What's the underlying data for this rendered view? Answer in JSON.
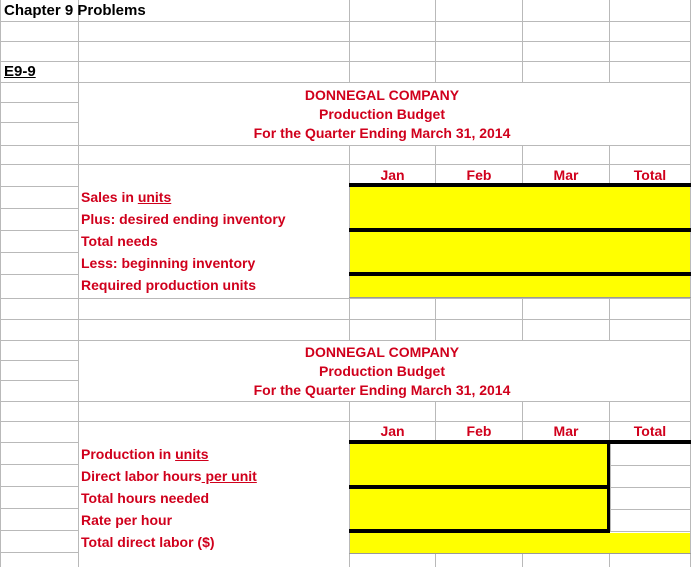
{
  "doc": {
    "title": "Chapter 9 Problems",
    "exercise": "E9-9"
  },
  "table1": {
    "company": "DONNEGAL COMPANY",
    "budget": "Production Budget",
    "period": "For the Quarter Ending March 31, 2014",
    "columns": [
      "Jan",
      "Feb",
      "Mar",
      "Total"
    ],
    "rows": [
      {
        "prefix": "Sales in ",
        "em": "units",
        "suffix": ""
      },
      {
        "prefix": "Plus:  desired ending inventory",
        "em": "",
        "suffix": ""
      },
      {
        "prefix": "Total needs",
        "em": "",
        "suffix": ""
      },
      {
        "prefix": "Less:  beginning inventory",
        "em": "",
        "suffix": ""
      },
      {
        "prefix": "Required production units",
        "em": "",
        "suffix": ""
      }
    ]
  },
  "table2": {
    "company": "DONNEGAL COMPANY",
    "budget": "Production Budget",
    "period": "For the Quarter Ending March 31, 2014",
    "columns": [
      "Jan",
      "Feb",
      "Mar",
      "Total"
    ],
    "rows": [
      {
        "prefix": "Production in ",
        "em": "units",
        "suffix": ""
      },
      {
        "prefix": "Direct labor hours",
        "em": " per unit",
        "suffix": ""
      },
      {
        "prefix": "Total hours needed",
        "em": "",
        "suffix": ""
      },
      {
        "prefix": "Rate per hour",
        "em": "",
        "suffix": ""
      },
      {
        "prefix": "Total direct labor ($)",
        "em": "",
        "suffix": ""
      }
    ]
  },
  "colors": {
    "label_text": "#d0001c",
    "input_fill": "#ffff00",
    "grid": "#b9b9b9"
  }
}
